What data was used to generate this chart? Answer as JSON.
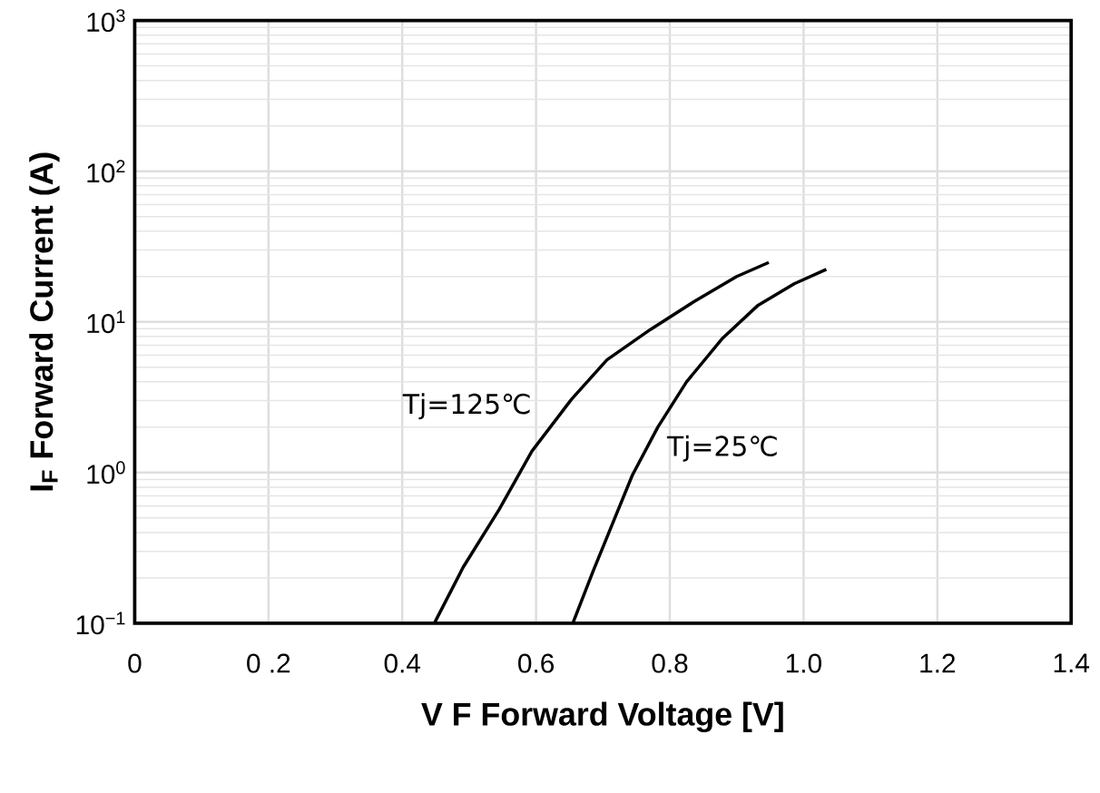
{
  "chart_data": {
    "type": "line",
    "xlabel": "V F  Forward Voltage [V]",
    "ylabel": "I$_{F}$ Forward Current (A)",
    "log": "y",
    "grid": true,
    "marker": "none",
    "line_style": "solid",
    "xlim": [
      0,
      1.4
    ],
    "ylim": [
      0.1,
      1000
    ],
    "xticks": [
      0,
      {
        "value": 0.2,
        "label": "0 .2"
      },
      0.4,
      0.6,
      0.8,
      {
        "value": 1.0,
        "label": "1.0"
      },
      1.2,
      1.4
    ],
    "yticks": [
      {
        "value": 0.1,
        "label": "10$^{−1}$"
      },
      {
        "value": 1,
        "label": "10$^{0}$"
      },
      {
        "value": 10,
        "label": "10$^{1}$"
      },
      {
        "value": 100,
        "label": "10$^{2}$"
      },
      {
        "value": 1000,
        "label": "10$^{3}$"
      }
    ],
    "series": [
      {
        "color": "#000000",
        "x": [
          0.448,
          0.491,
          0.545,
          0.594,
          0.653,
          0.706,
          0.771,
          0.836,
          0.9,
          0.948
        ],
        "values": [
          0.1,
          0.235,
          0.57,
          1.39,
          3.06,
          5.6,
          8.9,
          13.6,
          20,
          24.8
        ]
      },
      {
        "color": "#000000",
        "x": [
          0.655,
          0.685,
          0.717,
          0.744,
          0.782,
          0.825,
          0.879,
          0.932,
          0.986,
          1.034
        ],
        "values": [
          0.1,
          0.22,
          0.49,
          0.96,
          2.0,
          4.0,
          7.8,
          12.9,
          17.9,
          22.3
        ]
      }
    ],
    "annotations": [
      "Tj=125℃",
      "Tj=25℃"
    ]
  }
}
